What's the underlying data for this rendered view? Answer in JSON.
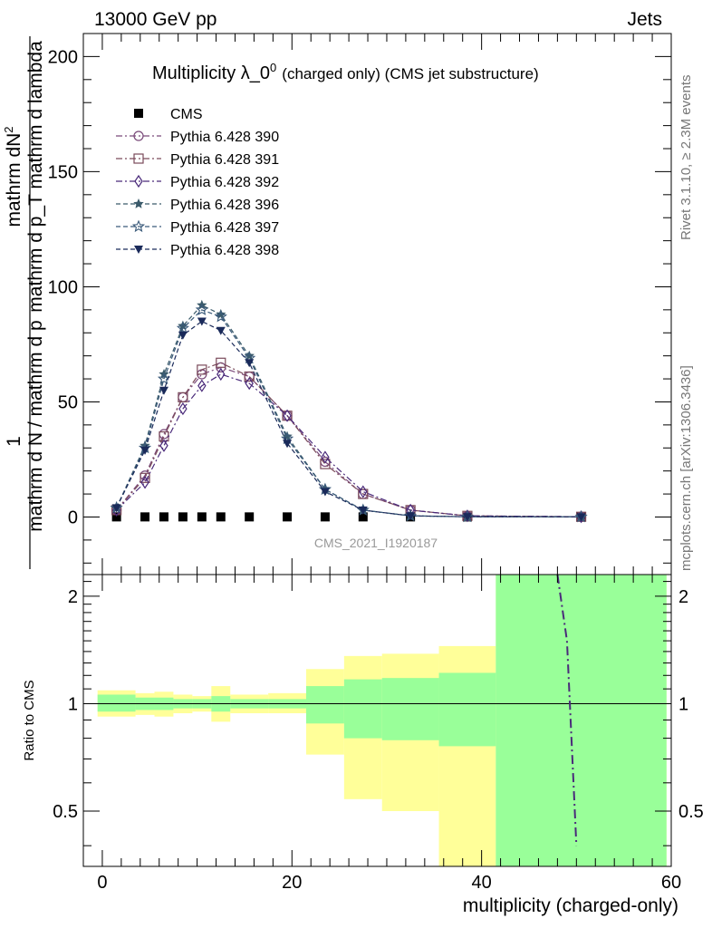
{
  "header": {
    "energy_label": "13000 GeV pp",
    "category_label": "Jets",
    "side_rivet": "Rivet 3.1.10, ≥ 2.3M events",
    "side_source": "mcplots.cern.ch [arXiv:1306.3436]"
  },
  "chart_data": [
    {
      "type": "line",
      "title_main": "Multiplicity λ_0",
      "title_sup": "0",
      "title_extra": "(charged only) (CMS jet substructure)",
      "ylabel_numerator": "mathrm dN",
      "ylabel_numerator_sup": "2",
      "ylabel_numerator_frac_top": "1",
      "ylabel_denominator": "mathrm d N / mathrm d p",
      "ylabel_full_frac": "mathrm d p_T mathrm d lambda",
      "ylabel_top_text": "mathrm d p_T mathrm d lambda",
      "watermark": "CMS_2021_I1920187",
      "xlim": [
        -2,
        60
      ],
      "ylim": [
        -25,
        210
      ],
      "yticks": [
        0,
        50,
        100,
        150,
        200
      ],
      "x": [
        1.5,
        4.5,
        6.5,
        8.5,
        10.5,
        12.5,
        15.5,
        19.5,
        23.5,
        27.5,
        32.5,
        38.5,
        50.5
      ],
      "series": [
        {
          "name": "CMS",
          "marker": "square-filled",
          "color": "#000000",
          "values": [
            0.05,
            0.05,
            0.05,
            0.05,
            0.05,
            0.05,
            0.05,
            0.05,
            0.05,
            0.05,
            0.05,
            0.05,
            0.05
          ]
        },
        {
          "name": "Pythia 6.428 390",
          "marker": "circle-open",
          "color": "#7a4a7a",
          "dash": "dashdot",
          "values": [
            3,
            18,
            36,
            52,
            62,
            65,
            61,
            44,
            24,
            10,
            3,
            0.5,
            0.1
          ]
        },
        {
          "name": "Pythia 6.428 391",
          "marker": "square-open",
          "color": "#7a4a5a",
          "dash": "dashdot",
          "values": [
            3,
            17,
            35,
            52,
            64,
            67,
            61,
            44,
            23,
            10,
            3,
            0.5,
            0.1
          ]
        },
        {
          "name": "Pythia 6.428 392",
          "marker": "diamond-open",
          "color": "#4a2a7a",
          "dash": "dashdot",
          "values": [
            3,
            15,
            31,
            47,
            57,
            62,
            58,
            44,
            26,
            11,
            3,
            0.5,
            0.1
          ]
        },
        {
          "name": "Pythia 6.428 396",
          "marker": "star-filled",
          "color": "#3a5a6a",
          "dash": "dashed",
          "values": [
            4,
            31,
            62,
            83,
            92,
            88,
            70,
            35,
            12,
            3,
            0.5,
            0.1,
            0.05
          ]
        },
        {
          "name": "Pythia 6.428 397",
          "marker": "star-open",
          "color": "#3a5a7a",
          "dash": "dashed",
          "values": [
            4,
            30,
            60,
            82,
            90,
            87,
            69,
            34,
            12,
            3,
            0.5,
            0.1,
            0.05
          ]
        },
        {
          "name": "Pythia 6.428 398",
          "marker": "triangle-down-filled",
          "color": "#1a2a5a",
          "dash": "dashed",
          "values": [
            4,
            29,
            55,
            79,
            85,
            81,
            67,
            32,
            11,
            3,
            0.5,
            0.1,
            0.05
          ]
        }
      ]
    },
    {
      "type": "area",
      "ylabel": "Ratio to CMS",
      "xlabel": "multiplicity (charged-only)",
      "xlim": [
        -2,
        60
      ],
      "ylim": [
        0.35,
        2.3
      ],
      "yticks": [
        0.5,
        1,
        2
      ],
      "ytick_labels": [
        "0.5",
        "1",
        "2"
      ],
      "xticks": [
        0,
        20,
        40,
        60
      ],
      "bins": [
        {
          "lo": -0.5,
          "hi": 3.5,
          "inner": [
            0.95,
            1.06
          ],
          "outer": [
            0.92,
            1.09
          ]
        },
        {
          "lo": 3.5,
          "hi": 5.5,
          "inner": [
            0.96,
            1.04
          ],
          "outer": [
            0.93,
            1.07
          ]
        },
        {
          "lo": 5.5,
          "hi": 7.5,
          "inner": [
            0.96,
            1.04
          ],
          "outer": [
            0.92,
            1.08
          ]
        },
        {
          "lo": 7.5,
          "hi": 9.5,
          "inner": [
            0.97,
            1.03
          ],
          "outer": [
            0.94,
            1.06
          ]
        },
        {
          "lo": 9.5,
          "hi": 11.5,
          "inner": [
            0.97,
            1.03
          ],
          "outer": [
            0.95,
            1.05
          ]
        },
        {
          "lo": 11.5,
          "hi": 13.5,
          "inner": [
            0.95,
            1.05
          ],
          "outer": [
            0.89,
            1.12
          ]
        },
        {
          "lo": 13.5,
          "hi": 17.5,
          "inner": [
            0.97,
            1.03
          ],
          "outer": [
            0.94,
            1.06
          ]
        },
        {
          "lo": 17.5,
          "hi": 21.5,
          "inner": [
            0.97,
            1.03
          ],
          "outer": [
            0.94,
            1.07
          ]
        },
        {
          "lo": 21.5,
          "hi": 25.5,
          "inner": [
            0.88,
            1.12
          ],
          "outer": [
            0.72,
            1.25
          ]
        },
        {
          "lo": 25.5,
          "hi": 29.5,
          "inner": [
            0.8,
            1.17
          ],
          "outer": [
            0.54,
            1.36
          ]
        },
        {
          "lo": 29.5,
          "hi": 35.5,
          "inner": [
            0.79,
            1.18
          ],
          "outer": [
            0.5,
            1.38
          ]
        },
        {
          "lo": 35.5,
          "hi": 41.5,
          "inner": [
            0.76,
            1.22
          ],
          "outer": [
            0.3,
            1.45
          ]
        },
        {
          "lo": 41.5,
          "hi": 59.5,
          "inner": [
            0.3,
            2.4
          ],
          "outer": [
            0.3,
            2.4
          ]
        }
      ],
      "curve": {
        "color": "#4a2a7a",
        "points": [
          [
            48,
            2.3
          ],
          [
            49,
            1.5
          ],
          [
            50,
            0.4
          ]
        ]
      }
    }
  ]
}
